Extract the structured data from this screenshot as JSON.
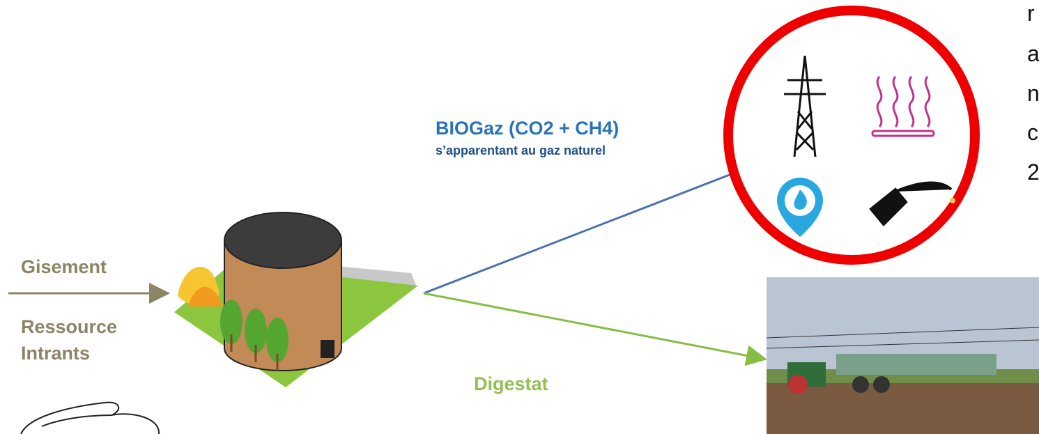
{
  "labels": {
    "gisement": "Gisement",
    "ressource": "Ressource",
    "intrants": "Intrants",
    "biogaz": "BIOGaz (CO2 + CH4)",
    "biogaz_note": "s’apparentant au gaz naturel",
    "digestat": "Digestat"
  },
  "edge_text": [
    "r",
    "a",
    "n",
    "c",
    "2"
  ]
}
